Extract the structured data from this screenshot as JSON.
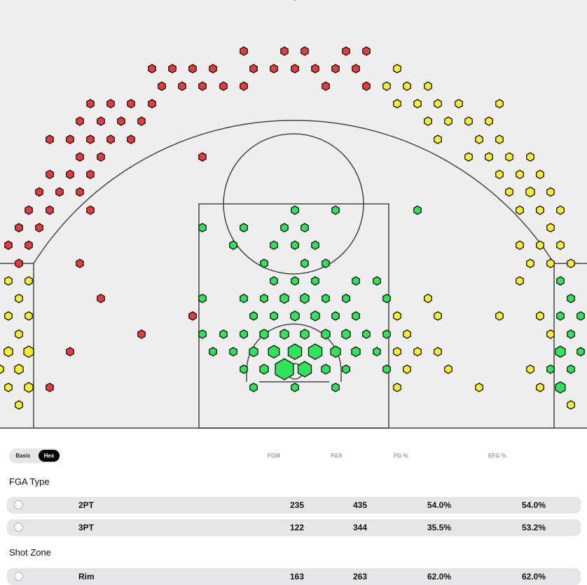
{
  "toggle": {
    "basic_label": "Basic",
    "hex_label": "Hex",
    "active": "Hex"
  },
  "table": {
    "columns": [
      "FGM",
      "FGA",
      "FG %",
      "EFG %"
    ],
    "sections": [
      {
        "title": "FGA Type",
        "rows": [
          {
            "label": "2PT",
            "fgm": "235",
            "fga": "435",
            "fg_pct": "54.0%",
            "efg_pct": "54.0%"
          },
          {
            "label": "3PT",
            "fgm": "122",
            "fga": "344",
            "fg_pct": "35.5%",
            "efg_pct": "53.2%"
          }
        ]
      },
      {
        "title": "Shot Zone",
        "rows": [
          {
            "label": "Rim",
            "fgm": "163",
            "fga": "263",
            "fg_pct": "62.0%",
            "efg_pct": "62.0%"
          }
        ]
      }
    ]
  },
  "chart_data": {
    "type": "scatter",
    "colors": {
      "red": "#ee3a3a",
      "yellow": "#ffee2e",
      "green": "#2ee55a",
      "court_bg": "#eeeeee",
      "line": "#444444"
    },
    "hexes": [
      [
        421,
        -5,
        "r",
        5
      ],
      [
        348,
        73,
        "r",
        6
      ],
      [
        406,
        73,
        "r",
        6
      ],
      [
        435,
        73,
        "r",
        6
      ],
      [
        494,
        73,
        "r",
        6
      ],
      [
        523,
        73,
        "r",
        6
      ],
      [
        217,
        98,
        "r",
        6
      ],
      [
        246,
        98,
        "r",
        6
      ],
      [
        275,
        98,
        "r",
        6
      ],
      [
        304,
        98,
        "r",
        6
      ],
      [
        362,
        98,
        "r",
        6
      ],
      [
        391,
        98,
        "r",
        6
      ],
      [
        421,
        98,
        "r",
        6
      ],
      [
        450,
        98,
        "r",
        6
      ],
      [
        479,
        98,
        "r",
        6
      ],
      [
        508,
        98,
        "r",
        6
      ],
      [
        567,
        98,
        "y",
        6
      ],
      [
        231,
        123,
        "r",
        6
      ],
      [
        260,
        123,
        "r",
        6
      ],
      [
        289,
        123,
        "r",
        6
      ],
      [
        319,
        123,
        "r",
        6
      ],
      [
        348,
        123,
        "r",
        6
      ],
      [
        465,
        123,
        "r",
        6
      ],
      [
        523,
        123,
        "r",
        6
      ],
      [
        552,
        123,
        "y",
        6
      ],
      [
        581,
        123,
        "y",
        6
      ],
      [
        611,
        123,
        "y",
        6
      ],
      [
        129,
        148,
        "r",
        6
      ],
      [
        158,
        148,
        "r",
        6
      ],
      [
        187,
        148,
        "r",
        6
      ],
      [
        217,
        148,
        "r",
        6
      ],
      [
        567,
        148,
        "y",
        6
      ],
      [
        596,
        148,
        "y",
        6
      ],
      [
        625,
        148,
        "y",
        6
      ],
      [
        655,
        148,
        "y",
        6
      ],
      [
        713,
        148,
        "y",
        6
      ],
      [
        114,
        173,
        "r",
        6
      ],
      [
        144,
        173,
        "r",
        6
      ],
      [
        173,
        173,
        "r",
        6
      ],
      [
        202,
        173,
        "r",
        6
      ],
      [
        611,
        173,
        "y",
        6
      ],
      [
        640,
        173,
        "y",
        6
      ],
      [
        669,
        173,
        "y",
        6
      ],
      [
        698,
        173,
        "y",
        6
      ],
      [
        71,
        199,
        "r",
        6
      ],
      [
        100,
        199,
        "r",
        6
      ],
      [
        129,
        199,
        "r",
        6
      ],
      [
        158,
        199,
        "r",
        6
      ],
      [
        187,
        199,
        "r",
        6
      ],
      [
        625,
        199,
        "y",
        6
      ],
      [
        684,
        199,
        "y",
        6
      ],
      [
        713,
        199,
        "y",
        6
      ],
      [
        114,
        224,
        "r",
        6
      ],
      [
        144,
        224,
        "r",
        6
      ],
      [
        289,
        224,
        "r",
        6
      ],
      [
        669,
        224,
        "y",
        6
      ],
      [
        698,
        224,
        "y",
        6
      ],
      [
        727,
        224,
        "y",
        6
      ],
      [
        757,
        224,
        "y",
        6
      ],
      [
        71,
        249,
        "r",
        6
      ],
      [
        100,
        249,
        "r",
        6
      ],
      [
        129,
        249,
        "r",
        6
      ],
      [
        713,
        249,
        "y",
        6
      ],
      [
        742,
        249,
        "y",
        6
      ],
      [
        771,
        249,
        "y",
        6
      ],
      [
        56,
        274,
        "r",
        6
      ],
      [
        85,
        274,
        "r",
        6
      ],
      [
        114,
        274,
        "r",
        6
      ],
      [
        727,
        274,
        "y",
        6
      ],
      [
        757,
        274,
        "y",
        7
      ],
      [
        786,
        274,
        "y",
        6
      ],
      [
        41,
        300,
        "r",
        6
      ],
      [
        71,
        300,
        "r",
        6
      ],
      [
        129,
        300,
        "r",
        6
      ],
      [
        421,
        300,
        "g",
        6
      ],
      [
        479,
        300,
        "g",
        6
      ],
      [
        596,
        300,
        "g",
        6
      ],
      [
        742,
        300,
        "y",
        6
      ],
      [
        771,
        300,
        "y",
        6
      ],
      [
        800,
        300,
        "y",
        6
      ],
      [
        27,
        325,
        "r",
        6
      ],
      [
        56,
        325,
        "r",
        6
      ],
      [
        289,
        325,
        "g",
        6
      ],
      [
        348,
        325,
        "g",
        6
      ],
      [
        406,
        325,
        "g",
        6
      ],
      [
        435,
        325,
        "g",
        6
      ],
      [
        786,
        325,
        "y",
        6
      ],
      [
        12,
        350,
        "r",
        6
      ],
      [
        41,
        350,
        "r",
        6
      ],
      [
        333,
        350,
        "g",
        6
      ],
      [
        391,
        350,
        "g",
        6
      ],
      [
        421,
        350,
        "g",
        6
      ],
      [
        450,
        350,
        "g",
        6
      ],
      [
        742,
        350,
        "y",
        6
      ],
      [
        771,
        350,
        "y",
        6
      ],
      [
        800,
        350,
        "y",
        6
      ],
      [
        27,
        376,
        "r",
        6
      ],
      [
        114,
        376,
        "r",
        6
      ],
      [
        377,
        376,
        "g",
        6
      ],
      [
        435,
        376,
        "g",
        6
      ],
      [
        465,
        376,
        "g",
        6
      ],
      [
        757,
        376,
        "y",
        6
      ],
      [
        786,
        376,
        "y",
        6
      ],
      [
        815,
        376,
        "y",
        6
      ],
      [
        12,
        401,
        "y",
        6
      ],
      [
        41,
        401,
        "y",
        6
      ],
      [
        391,
        401,
        "g",
        6
      ],
      [
        421,
        401,
        "g",
        6
      ],
      [
        450,
        401,
        "g",
        6
      ],
      [
        508,
        401,
        "g",
        6
      ],
      [
        538,
        401,
        "g",
        6
      ],
      [
        742,
        401,
        "y",
        6
      ],
      [
        800,
        401,
        "g",
        6
      ],
      [
        27,
        426,
        "y",
        6
      ],
      [
        144,
        426,
        "r",
        6
      ],
      [
        289,
        426,
        "g",
        6
      ],
      [
        348,
        426,
        "g",
        6
      ],
      [
        377,
        426,
        "g",
        6
      ],
      [
        406,
        426,
        "g",
        7
      ],
      [
        435,
        426,
        "g",
        7
      ],
      [
        465,
        426,
        "g",
        6
      ],
      [
        494,
        426,
        "g",
        6
      ],
      [
        552,
        426,
        "g",
        6
      ],
      [
        611,
        426,
        "y",
        6
      ],
      [
        815,
        426,
        "g",
        6
      ],
      [
        12,
        451,
        "y",
        6
      ],
      [
        41,
        451,
        "y",
        6
      ],
      [
        275,
        451,
        "r",
        6
      ],
      [
        362,
        451,
        "g",
        6
      ],
      [
        391,
        451,
        "g",
        6
      ],
      [
        421,
        451,
        "g",
        7
      ],
      [
        450,
        451,
        "g",
        7
      ],
      [
        479,
        451,
        "g",
        6
      ],
      [
        508,
        451,
        "g",
        6
      ],
      [
        567,
        451,
        "y",
        6
      ],
      [
        625,
        451,
        "y",
        6
      ],
      [
        713,
        451,
        "y",
        6
      ],
      [
        771,
        451,
        "y",
        6
      ],
      [
        800,
        451,
        "g",
        6
      ],
      [
        829,
        451,
        "g",
        6
      ],
      [
        27,
        477,
        "y",
        6
      ],
      [
        202,
        477,
        "r",
        6
      ],
      [
        289,
        477,
        "g",
        6
      ],
      [
        319,
        477,
        "g",
        6
      ],
      [
        348,
        477,
        "g",
        6
      ],
      [
        377,
        477,
        "g",
        7
      ],
      [
        406,
        477,
        "g",
        7
      ],
      [
        435,
        477,
        "g",
        7
      ],
      [
        465,
        477,
        "g",
        7
      ],
      [
        494,
        477,
        "g",
        7
      ],
      [
        523,
        477,
        "g",
        6
      ],
      [
        552,
        477,
        "g",
        6
      ],
      [
        581,
        477,
        "y",
        6
      ],
      [
        786,
        477,
        "y",
        6
      ],
      [
        815,
        477,
        "g",
        6
      ],
      [
        12,
        502,
        "y",
        7
      ],
      [
        41,
        502,
        "y",
        8
      ],
      [
        100,
        502,
        "r",
        6
      ],
      [
        304,
        502,
        "g",
        6
      ],
      [
        333,
        502,
        "g",
        6
      ],
      [
        362,
        502,
        "g",
        7
      ],
      [
        391,
        502,
        "g",
        9
      ],
      [
        421,
        502,
        "g",
        11
      ],
      [
        450,
        502,
        "g",
        11
      ],
      [
        479,
        502,
        "g",
        8
      ],
      [
        508,
        502,
        "g",
        7
      ],
      [
        538,
        502,
        "g",
        6
      ],
      [
        567,
        502,
        "y",
        6
      ],
      [
        596,
        502,
        "y",
        6
      ],
      [
        625,
        502,
        "y",
        6
      ],
      [
        800,
        502,
        "g",
        8
      ],
      [
        829,
        502,
        "g",
        6
      ],
      [
        0,
        527,
        "y",
        6
      ],
      [
        27,
        527,
        "y",
        7
      ],
      [
        348,
        527,
        "g",
        6
      ],
      [
        377,
        527,
        "g",
        7
      ],
      [
        406,
        527,
        "g",
        15
      ],
      [
        435,
        527,
        "g",
        11
      ],
      [
        465,
        527,
        "g",
        7
      ],
      [
        494,
        527,
        "g",
        6
      ],
      [
        552,
        527,
        "g",
        6
      ],
      [
        581,
        527,
        "y",
        6
      ],
      [
        640,
        527,
        "y",
        6
      ],
      [
        757,
        527,
        "y",
        6
      ],
      [
        786,
        527,
        "g",
        6
      ],
      [
        815,
        527,
        "g",
        6
      ],
      [
        12,
        553,
        "y",
        6
      ],
      [
        41,
        553,
        "y",
        7
      ],
      [
        71,
        553,
        "r",
        6
      ],
      [
        362,
        553,
        "g",
        6
      ],
      [
        421,
        553,
        "g",
        6
      ],
      [
        479,
        553,
        "g",
        6
      ],
      [
        567,
        553,
        "y",
        6
      ],
      [
        684,
        553,
        "y",
        6
      ],
      [
        771,
        553,
        "y",
        6
      ],
      [
        800,
        553,
        "g",
        8
      ],
      [
        27,
        578,
        "y",
        6
      ],
      [
        815,
        578,
        "y",
        6
      ]
    ]
  }
}
